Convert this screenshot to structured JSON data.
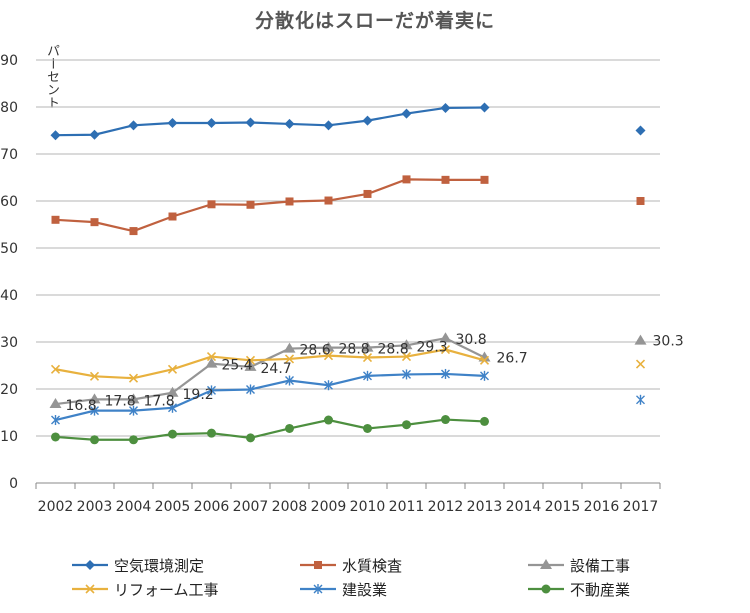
{
  "chart_data": {
    "type": "line",
    "title": "分散化はスローだが着実に",
    "ylabel": "パーセント",
    "ylim": [
      0,
      90
    ],
    "yticks": [
      0,
      10,
      20,
      30,
      40,
      50,
      60,
      70,
      80,
      90
    ],
    "categories": [
      "2002",
      "2003",
      "2004",
      "2005",
      "2006",
      "2007",
      "2008",
      "2009",
      "2010",
      "2011",
      "2012",
      "2013",
      "2014",
      "2015",
      "2016",
      "2017"
    ],
    "gridlines": true,
    "legend_position": "bottom",
    "series": [
      {
        "name": "空気環境測定",
        "color": "#2e6fb3",
        "marker": "diamond",
        "values": [
          74.0,
          74.1,
          76.1,
          76.6,
          76.6,
          76.7,
          76.4,
          76.1,
          77.1,
          78.6,
          79.8,
          79.9,
          null,
          null,
          null,
          75.0
        ]
      },
      {
        "name": "水質検査",
        "color": "#c0613f",
        "marker": "square",
        "values": [
          56.0,
          55.5,
          53.6,
          56.7,
          59.3,
          59.2,
          59.9,
          60.1,
          61.5,
          64.6,
          64.5,
          64.5,
          null,
          null,
          null,
          60.0
        ]
      },
      {
        "name": "設備工事",
        "color": "#959595",
        "marker": "triangle",
        "values": [
          16.8,
          17.8,
          17.8,
          19.2,
          25.4,
          24.7,
          28.6,
          28.8,
          28.8,
          29.3,
          30.8,
          26.7,
          null,
          null,
          null,
          30.3
        ]
      },
      {
        "name": "リフォーム工事",
        "color": "#e8b13e",
        "marker": "x",
        "values": [
          24.2,
          22.7,
          22.3,
          24.2,
          26.9,
          26.1,
          26.4,
          27.1,
          26.7,
          26.9,
          28.4,
          26.1,
          null,
          null,
          null,
          25.3
        ]
      },
      {
        "name": "建設業",
        "color": "#3f82c7",
        "marker": "star",
        "values": [
          13.4,
          15.4,
          15.4,
          16.0,
          19.7,
          19.9,
          21.8,
          20.8,
          22.8,
          23.1,
          23.2,
          22.8,
          null,
          null,
          null,
          17.7
        ]
      },
      {
        "name": "不動産業",
        "color": "#4d8f3f",
        "marker": "circle",
        "values": [
          9.8,
          9.2,
          9.2,
          10.4,
          10.6,
          9.6,
          11.6,
          13.4,
          11.6,
          12.4,
          13.5,
          13.1,
          null,
          null,
          null,
          null
        ]
      }
    ],
    "annotations": [
      {
        "series": "設備工事",
        "category": "2002",
        "text": "16.8"
      },
      {
        "series": "設備工事",
        "category": "2003",
        "text": "17.8"
      },
      {
        "series": "設備工事",
        "category": "2004",
        "text": "17.8"
      },
      {
        "series": "設備工事",
        "category": "2005",
        "text": "19.2"
      },
      {
        "series": "設備工事",
        "category": "2006",
        "text": "25.4"
      },
      {
        "series": "設備工事",
        "category": "2007",
        "text": "24.7"
      },
      {
        "series": "設備工事",
        "category": "2008",
        "text": "28.6"
      },
      {
        "series": "設備工事",
        "category": "2009",
        "text": "28.8"
      },
      {
        "series": "設備工事",
        "category": "2010",
        "text": "28.8"
      },
      {
        "series": "設備工事",
        "category": "2011",
        "text": "29.3"
      },
      {
        "series": "設備工事",
        "category": "2012",
        "text": "30.8"
      },
      {
        "series": "設備工事",
        "category": "2013",
        "text": "26.7"
      },
      {
        "series": "設備工事",
        "category": "2017",
        "text": "30.3"
      }
    ]
  }
}
